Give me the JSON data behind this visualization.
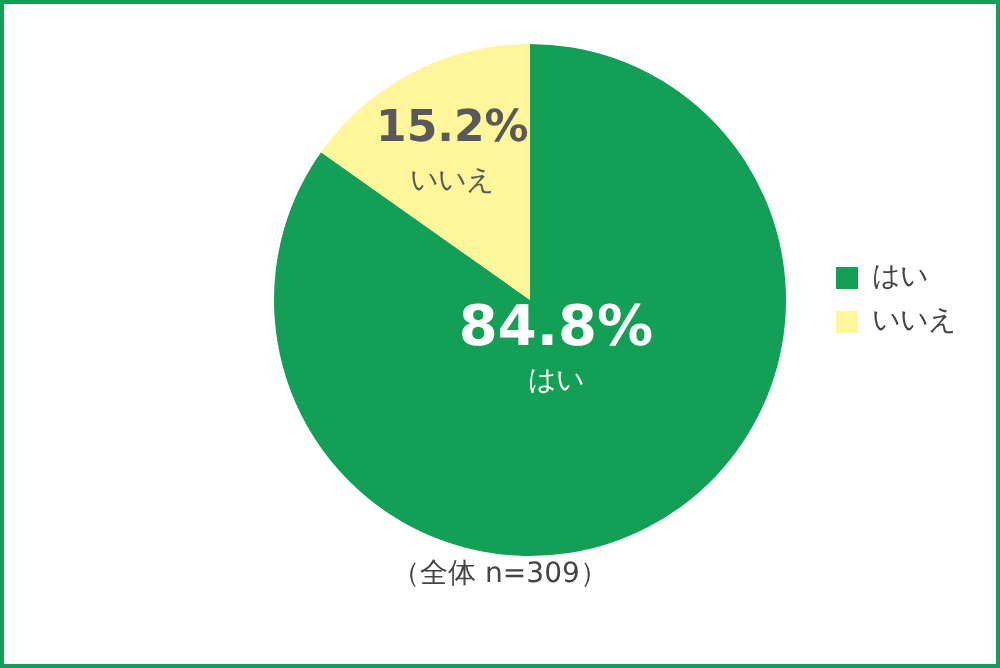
{
  "chart_data": {
    "type": "pie",
    "categories": [
      "はい",
      "いいえ"
    ],
    "values": [
      84.8,
      15.2
    ],
    "colors": [
      "#139f55",
      "#fff59a"
    ],
    "value_labels": [
      "84.8%",
      "15.2%"
    ],
    "legend": "right",
    "annotations": [
      "（全体 n=309）"
    ]
  }
}
